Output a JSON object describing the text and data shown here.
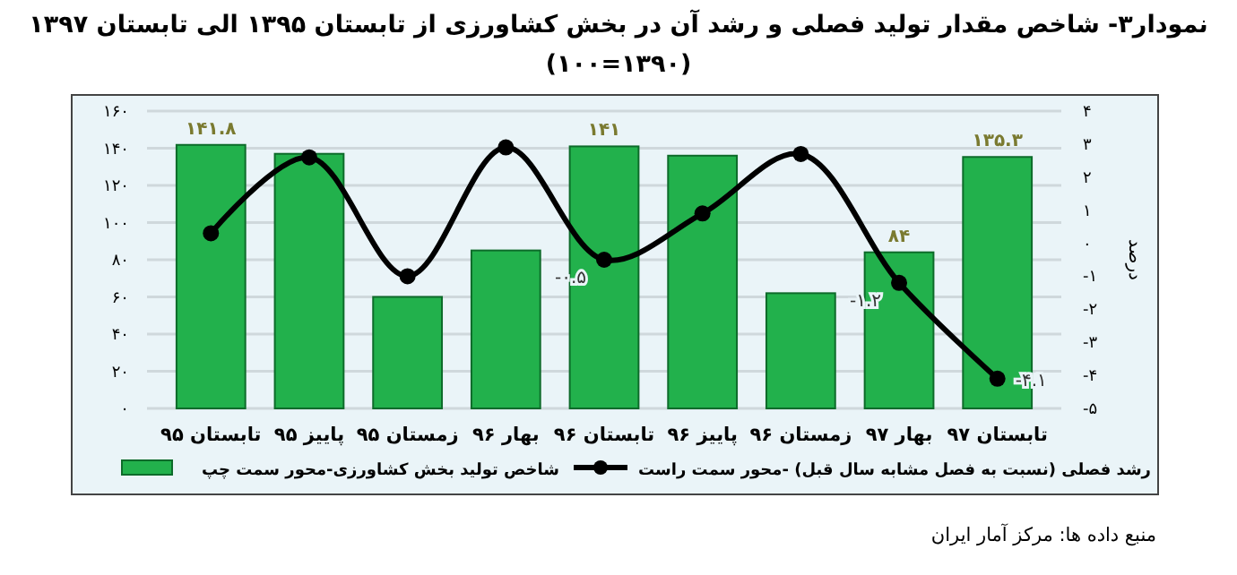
{
  "chart_data": {
    "type": "bar",
    "title": "نمودار۳- شاخص مقدار تولید فصلی و رشد آن در بخش کشاورزی از تابستان ۱۳۹۵ الی تابستان ۱۳۹۷",
    "subtitle": "(۱۳۹۰=۱۰۰)",
    "y2label": "درصد",
    "categories": [
      "تابستان ۹۵",
      "پاییز ۹۵",
      "زمستان ۹۵",
      "بهار ۹۶",
      "تابستان ۹۶",
      "پاییز ۹۶",
      "زمستان ۹۶",
      "بهار ۹۷",
      "تابستان ۹۷"
    ],
    "series": [
      {
        "name": "شاخص تولید بخش کشاورزی-محور سمت چپ",
        "color": "#22b14c",
        "values": [
          141.8,
          137,
          60,
          85,
          141,
          136,
          62,
          84,
          135.3
        ],
        "value_labels": [
          "۱۴۱.۸",
          null,
          null,
          null,
          "۱۴۱",
          null,
          null,
          "۸۴",
          "۱۳۵.۳"
        ]
      },
      {
        "name": "رشد فصلی (نسبت به فصل مشابه سال قبل) -محور سمت راست",
        "type": "line",
        "axis": "y2",
        "color": "#000000",
        "marker": "circle",
        "values": [
          0.3,
          2.6,
          -1.0,
          2.9,
          -0.5,
          0.9,
          2.7,
          -1.2,
          -4.1
        ],
        "value_labels": [
          null,
          null,
          null,
          null,
          "-۰.۵",
          null,
          null,
          "-۱.۲",
          "-۴.۱"
        ]
      }
    ],
    "ylim": [
      0,
      160
    ],
    "yticks": [
      {
        "value": 0,
        "label": "۰"
      },
      {
        "value": 20,
        "label": "۲۰"
      },
      {
        "value": 40,
        "label": "۴۰"
      },
      {
        "value": 60,
        "label": "۶۰"
      },
      {
        "value": 80,
        "label": "۸۰"
      },
      {
        "value": 100,
        "label": "۱۰۰"
      },
      {
        "value": 120,
        "label": "۱۲۰"
      },
      {
        "value": 140,
        "label": "۱۴۰"
      },
      {
        "value": 160,
        "label": "۱۶۰"
      }
    ],
    "y2lim": [
      -5,
      4
    ],
    "y2ticks": [
      {
        "value": -5,
        "label": "-۵"
      },
      {
        "value": -4,
        "label": "-۴"
      },
      {
        "value": -3,
        "label": "-۳"
      },
      {
        "value": -2,
        "label": "-۲"
      },
      {
        "value": -1,
        "label": "-۱"
      },
      {
        "value": 0,
        "label": "۰"
      },
      {
        "value": 1,
        "label": "۱"
      },
      {
        "value": 2,
        "label": "۲"
      },
      {
        "value": 3,
        "label": "۳"
      },
      {
        "value": 4,
        "label": "۴"
      }
    ],
    "grid": "y",
    "legend": "bottom",
    "annotations": [
      "منبع داده ها: مرکز آمار ایران"
    ]
  }
}
